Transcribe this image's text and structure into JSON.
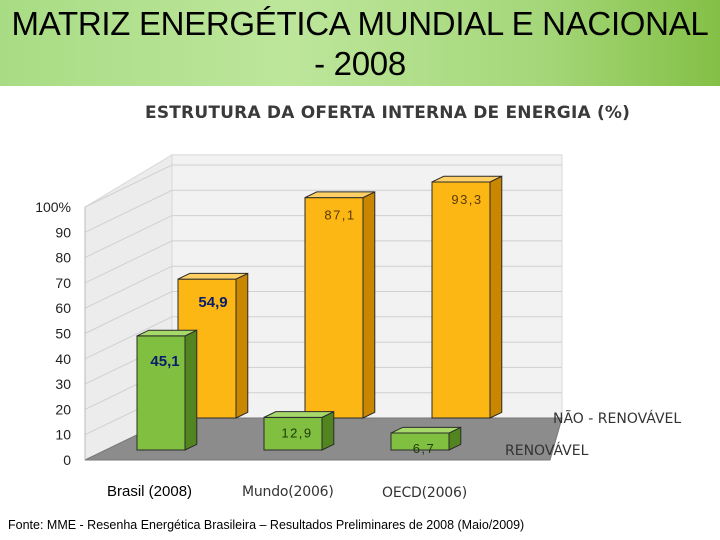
{
  "header": {
    "title_line1": "MATRIZ ENERGÉTICA MUNDIAL E NACIONAL",
    "title_line2": "- 2008"
  },
  "chart_data": {
    "type": "bar",
    "title": "ESTRUTURA DA OFERTA INTERNA DE ENERGIA (%)",
    "categories": [
      "Brasil (2008)",
      "Mundo(2006)",
      "OECD(2006)"
    ],
    "series": [
      {
        "name": "NÃO - RENOVÁVEL",
        "values": [
          54.9,
          87.1,
          93.3
        ],
        "labels": [
          "54,9",
          "87,1",
          "93,3"
        ],
        "color": "#f5a800"
      },
      {
        "name": "RENOVÁVEL",
        "values": [
          45.1,
          12.9,
          6.7
        ],
        "labels": [
          "45,1",
          "12,9",
          "6,7"
        ],
        "color": "#7ab23c"
      }
    ],
    "y_ticks": [
      "0",
      "10",
      "20",
      "30",
      "40",
      "50",
      "60",
      "70",
      "80",
      "90",
      "100%"
    ],
    "ylim": [
      0,
      100
    ],
    "grid": true,
    "three_d": true
  },
  "footer": {
    "source": "Fonte: MME - Resenha Energética Brasileira – Resultados Preliminares de 2008 (Maio/2009)"
  }
}
